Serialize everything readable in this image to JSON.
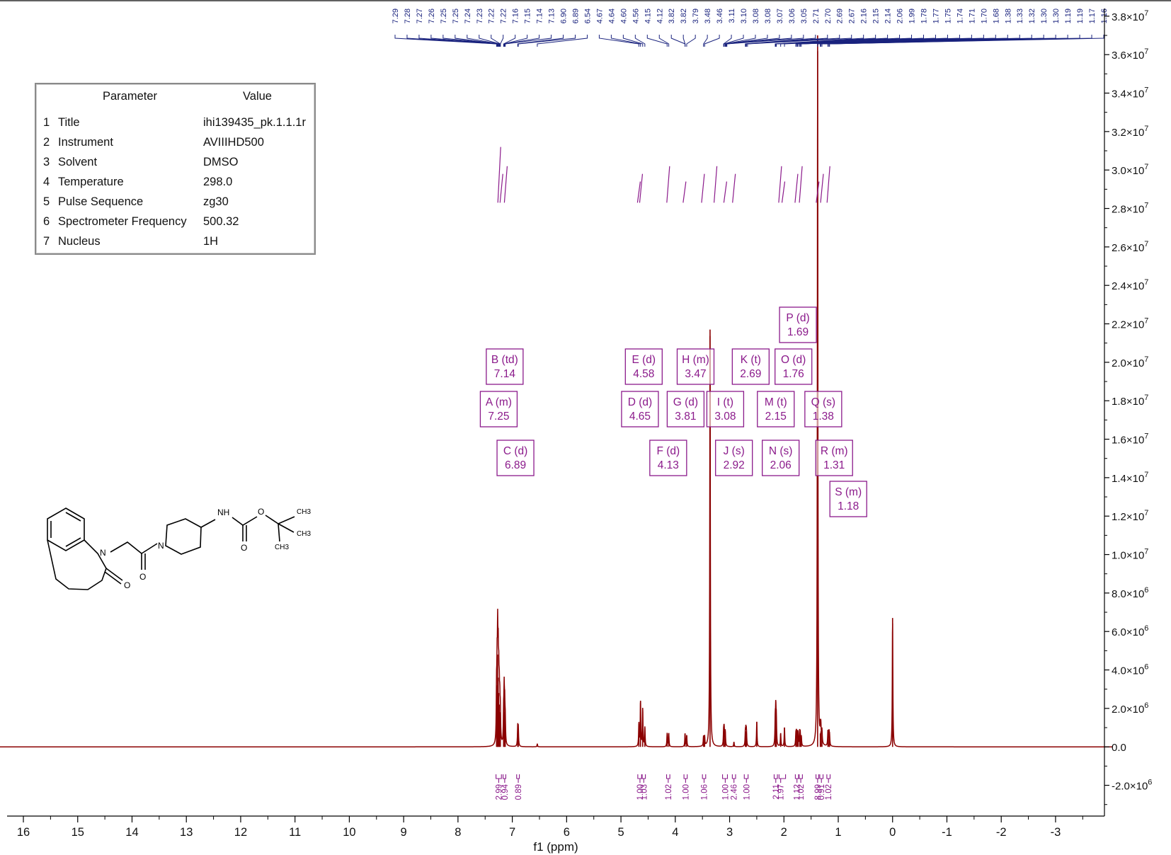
{
  "parameter_table": {
    "header_parameter": "Parameter",
    "header_value": "Value",
    "rows": [
      {
        "index": "1",
        "name": "Title",
        "value": "ihi139435_pk.1.1.1r"
      },
      {
        "index": "2",
        "name": "Instrument",
        "value": "AVIIIHD500"
      },
      {
        "index": "3",
        "name": "Solvent",
        "value": "DMSO"
      },
      {
        "index": "4",
        "name": "Temperature",
        "value": "298.0"
      },
      {
        "index": "5",
        "name": "Pulse Sequence",
        "value": "zg30"
      },
      {
        "index": "6",
        "name": "Spectrometer Frequency",
        "value": "500.32"
      },
      {
        "index": "7",
        "name": "Nucleus",
        "value": "1H"
      }
    ]
  },
  "structure_labels": {
    "nh": "NH",
    "o_ester": "O",
    "ch3_top": "CH3",
    "ch3_mid": "CH3",
    "ch3_bottom": "CH3",
    "o_carbamate": "O",
    "n_piperidine": "N",
    "o_amide": "O",
    "n_azepine": "N",
    "o_lactam": "O"
  },
  "colors": {
    "spectrum": "#8b0000",
    "peak_labels": "#1a237e",
    "multiplets": "#8b1a8b",
    "axis": "#000000"
  },
  "chart_data": {
    "type": "line",
    "xlabel": "f1 (ppm)",
    "ylabel": "",
    "xlim": [
      16.3,
      -3.9
    ],
    "ylim": [
      -3600000,
      38400000
    ],
    "x_reversed": true,
    "x_ticks": [
      16,
      15,
      14,
      13,
      12,
      11,
      10,
      9,
      8,
      7,
      6,
      5,
      4,
      3,
      2,
      1,
      0,
      -1,
      -2,
      -3
    ],
    "y_ticks": [
      {
        "value": 38000000,
        "mantissa": "3.8×10",
        "exp": "7"
      },
      {
        "value": 36000000,
        "mantissa": "3.6×10",
        "exp": "7"
      },
      {
        "value": 34000000,
        "mantissa": "3.4×10",
        "exp": "7"
      },
      {
        "value": 32000000,
        "mantissa": "3.2×10",
        "exp": "7"
      },
      {
        "value": 30000000,
        "mantissa": "3.0×10",
        "exp": "7"
      },
      {
        "value": 28000000,
        "mantissa": "2.8×10",
        "exp": "7"
      },
      {
        "value": 26000000,
        "mantissa": "2.6×10",
        "exp": "7"
      },
      {
        "value": 24000000,
        "mantissa": "2.4×10",
        "exp": "7"
      },
      {
        "value": 22000000,
        "mantissa": "2.2×10",
        "exp": "7"
      },
      {
        "value": 20000000,
        "mantissa": "2.0×10",
        "exp": "7"
      },
      {
        "value": 18000000,
        "mantissa": "1.8×10",
        "exp": "7"
      },
      {
        "value": 16000000,
        "mantissa": "1.6×10",
        "exp": "7"
      },
      {
        "value": 14000000,
        "mantissa": "1.4×10",
        "exp": "7"
      },
      {
        "value": 12000000,
        "mantissa": "1.2×10",
        "exp": "7"
      },
      {
        "value": 10000000,
        "mantissa": "1.0×10",
        "exp": "7"
      },
      {
        "value": 8000000,
        "mantissa": "8.0×10",
        "exp": "6"
      },
      {
        "value": 6000000,
        "mantissa": "6.0×10",
        "exp": "6"
      },
      {
        "value": 4000000,
        "mantissa": "4.0×10",
        "exp": "6"
      },
      {
        "value": 2000000,
        "mantissa": "2.0×10",
        "exp": "6"
      },
      {
        "value": 0,
        "mantissa": "0.0",
        "exp": ""
      },
      {
        "value": -2000000,
        "mantissa": "-2.0×10",
        "exp": "6"
      }
    ],
    "peaks": [
      {
        "ppm": 7.29,
        "height": 2500000
      },
      {
        "ppm": 7.28,
        "height": 3200000
      },
      {
        "ppm": 7.27,
        "height": 4800000
      },
      {
        "ppm": 7.26,
        "height": 3600000
      },
      {
        "ppm": 7.25,
        "height": 2800000
      },
      {
        "ppm": 7.24,
        "height": 2200000
      },
      {
        "ppm": 7.23,
        "height": 1800000
      },
      {
        "ppm": 7.22,
        "height": 1500000
      },
      {
        "ppm": 7.16,
        "height": 1500000
      },
      {
        "ppm": 7.15,
        "height": 2600000
      },
      {
        "ppm": 7.14,
        "height": 1800000
      },
      {
        "ppm": 7.13,
        "height": 1200000
      },
      {
        "ppm": 6.9,
        "height": 1000000
      },
      {
        "ppm": 6.89,
        "height": 900000
      },
      {
        "ppm": 6.54,
        "height": 150000
      },
      {
        "ppm": 4.67,
        "height": 1200000
      },
      {
        "ppm": 4.64,
        "height": 2400000
      },
      {
        "ppm": 4.6,
        "height": 2000000
      },
      {
        "ppm": 4.56,
        "height": 1000000
      },
      {
        "ppm": 4.15,
        "height": 700000
      },
      {
        "ppm": 4.12,
        "height": 700000
      },
      {
        "ppm": 3.82,
        "height": 700000
      },
      {
        "ppm": 3.79,
        "height": 600000
      },
      {
        "ppm": 3.48,
        "height": 500000
      },
      {
        "ppm": 3.46,
        "height": 500000
      },
      {
        "ppm": 3.36,
        "height": 21700000
      },
      {
        "ppm": 3.11,
        "height": 800000
      },
      {
        "ppm": 3.1,
        "height": 900000
      },
      {
        "ppm": 3.08,
        "height": 800000
      },
      {
        "ppm": 2.92,
        "height": 250000
      },
      {
        "ppm": 2.71,
        "height": 700000
      },
      {
        "ppm": 2.7,
        "height": 800000
      },
      {
        "ppm": 2.69,
        "height": 700000
      },
      {
        "ppm": 2.5,
        "height": 1300000
      },
      {
        "ppm": 2.16,
        "height": 1300000
      },
      {
        "ppm": 2.15,
        "height": 1800000
      },
      {
        "ppm": 2.14,
        "height": 1300000
      },
      {
        "ppm": 2.06,
        "height": 700000
      },
      {
        "ppm": 1.99,
        "height": 1000000
      },
      {
        "ppm": 1.78,
        "height": 600000
      },
      {
        "ppm": 1.77,
        "height": 700000
      },
      {
        "ppm": 1.75,
        "height": 600000
      },
      {
        "ppm": 1.74,
        "height": 600000
      },
      {
        "ppm": 1.71,
        "height": 700000
      },
      {
        "ppm": 1.7,
        "height": 600000
      },
      {
        "ppm": 1.68,
        "height": 500000
      },
      {
        "ppm": 1.38,
        "height": 37000000
      },
      {
        "ppm": 1.33,
        "height": 700000
      },
      {
        "ppm": 1.32,
        "height": 800000
      },
      {
        "ppm": 1.3,
        "height": 700000
      },
      {
        "ppm": 1.19,
        "height": 800000
      },
      {
        "ppm": 1.17,
        "height": 700000
      },
      {
        "ppm": 1.16,
        "height": 500000
      },
      {
        "ppm": 0.0,
        "height": 6700000
      }
    ],
    "peak_list": [
      "7.29",
      "7.28",
      "7.27",
      "7.26",
      "7.25",
      "7.25",
      "7.24",
      "7.23",
      "7.22",
      "7.22",
      "7.16",
      "7.15",
      "7.14",
      "7.13",
      "6.90",
      "6.89",
      "6.54",
      "4.67",
      "4.64",
      "4.60",
      "4.56",
      "4.15",
      "4.12",
      "3.82",
      "3.82",
      "3.79",
      "3.48",
      "3.46",
      "3.11",
      "3.10",
      "3.08",
      "3.08",
      "3.07",
      "3.06",
      "3.05",
      "2.71",
      "2.70",
      "2.69",
      "2.67",
      "2.16",
      "2.15",
      "2.14",
      "2.06",
      "1.99",
      "1.78",
      "1.77",
      "1.75",
      "1.74",
      "1.71",
      "1.70",
      "1.68",
      "1.38",
      "1.33",
      "1.32",
      "1.30",
      "1.30",
      "1.19",
      "1.19",
      "1.17",
      "1.16"
    ],
    "multiplets": [
      {
        "letter": "A",
        "type": "m",
        "ppm": "7.25",
        "x": 7.25
      },
      {
        "letter": "B",
        "type": "td",
        "ppm": "7.14",
        "x": 7.14
      },
      {
        "letter": "C",
        "type": "d",
        "ppm": "6.89",
        "x": 6.89
      },
      {
        "letter": "D",
        "type": "d",
        "ppm": "4.65",
        "x": 4.65
      },
      {
        "letter": "E",
        "type": "d",
        "ppm": "4.58",
        "x": 4.58
      },
      {
        "letter": "F",
        "type": "d",
        "ppm": "4.13",
        "x": 4.13
      },
      {
        "letter": "G",
        "type": "d",
        "ppm": "3.81",
        "x": 3.81
      },
      {
        "letter": "H",
        "type": "m",
        "ppm": "3.47",
        "x": 3.47
      },
      {
        "letter": "I",
        "type": "t",
        "ppm": "3.08",
        "x": 3.08
      },
      {
        "letter": "J",
        "type": "s",
        "ppm": "2.92",
        "x": 2.92
      },
      {
        "letter": "K",
        "type": "t",
        "ppm": "2.69",
        "x": 2.69
      },
      {
        "letter": "M",
        "type": "t",
        "ppm": "2.15",
        "x": 2.15
      },
      {
        "letter": "N",
        "type": "s",
        "ppm": "2.06",
        "x": 2.06
      },
      {
        "letter": "O",
        "type": "d",
        "ppm": "1.76",
        "x": 1.76
      },
      {
        "letter": "P",
        "type": "d",
        "ppm": "1.69",
        "x": 1.69
      },
      {
        "letter": "Q",
        "type": "s",
        "ppm": "1.38",
        "x": 1.38
      },
      {
        "letter": "R",
        "type": "m",
        "ppm": "1.31",
        "x": 1.31
      },
      {
        "letter": "S",
        "type": "m",
        "ppm": "1.18",
        "x": 1.18
      }
    ],
    "integrals": [
      {
        "label": "2.99",
        "x": 7.25,
        "from": 7.3,
        "to": 7.2
      },
      {
        "label": "0.94",
        "x": 7.14,
        "from": 7.17,
        "to": 7.12
      },
      {
        "label": "0.89",
        "x": 6.89,
        "from": 6.92,
        "to": 6.87
      },
      {
        "label": "1.00",
        "x": 4.65,
        "from": 4.69,
        "to": 4.62
      },
      {
        "label": "1.03",
        "x": 4.58,
        "from": 4.61,
        "to": 4.55
      },
      {
        "label": "1.02",
        "x": 4.13,
        "from": 4.16,
        "to": 4.1
      },
      {
        "label": "1.00",
        "x": 3.81,
        "from": 3.84,
        "to": 3.78
      },
      {
        "label": "1.06",
        "x": 3.47,
        "from": 3.5,
        "to": 3.44
      },
      {
        "label": "1.00",
        "x": 3.08,
        "from": 3.13,
        "to": 3.04
      },
      {
        "label": "2.46",
        "x": 2.92,
        "from": 2.95,
        "to": 2.89
      },
      {
        "label": "1.00",
        "x": 2.69,
        "from": 2.73,
        "to": 2.66
      },
      {
        "label": "2.11",
        "x": 2.15,
        "from": 2.18,
        "to": 2.12
      },
      {
        "label": "1.97",
        "x": 2.06,
        "from": 2.09,
        "to": 1.97
      },
      {
        "label": "1.12",
        "x": 1.76,
        "from": 1.79,
        "to": 1.73
      },
      {
        "label": "1.02",
        "x": 1.69,
        "from": 1.72,
        "to": 1.66
      },
      {
        "label": "8.99",
        "x": 1.38,
        "from": 1.41,
        "to": 1.36
      },
      {
        "label": "0.91",
        "x": 1.31,
        "from": 1.34,
        "to": 1.28
      },
      {
        "label": "1.02",
        "x": 1.18,
        "from": 1.21,
        "to": 1.15
      }
    ]
  }
}
